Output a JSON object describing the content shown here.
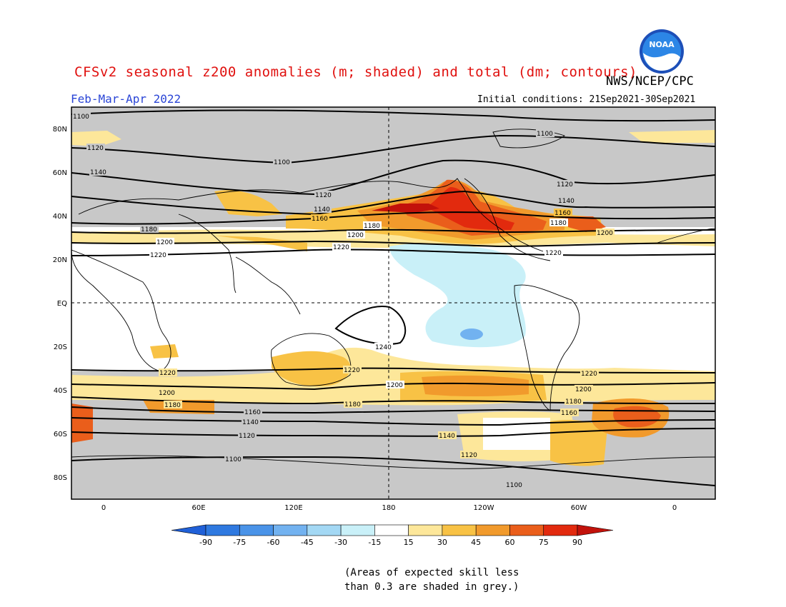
{
  "title": "CFSv2 seasonal z200 anomalies (m; shaded) and total (dm; contours)",
  "agency": "NWS/NCEP/CPC",
  "logo_text": "NOAA",
  "period": "Feb-Mar-Apr 2022",
  "initial_conditions": "Initial conditions: 21Sep2021-30Sep2021",
  "lat_labels": [
    "80N",
    "60N",
    "40N",
    "20N",
    "EQ",
    "20S",
    "40S",
    "60S",
    "80S"
  ],
  "lon_labels": [
    "0",
    "60E",
    "120E",
    "180",
    "120W",
    "60W",
    "0"
  ],
  "contour_labels": [
    "1100",
    "1120",
    "1140",
    "1160",
    "1180",
    "1200",
    "1220",
    "1240"
  ],
  "colorbar": {
    "values": [
      "-90",
      "-75",
      "-60",
      "-45",
      "-30",
      "-15",
      "15",
      "30",
      "45",
      "60",
      "75",
      "90"
    ],
    "colors": [
      "#2060d8",
      "#2f79e0",
      "#4a93e8",
      "#72b2f0",
      "#a3d8f4",
      "#c9f0f8",
      "#ffffff",
      "#fde79a",
      "#f8c245",
      "#f19a2c",
      "#ea5e1b",
      "#e22a0e",
      "#c2120b"
    ]
  },
  "note": [
    "(Areas of expected skill less",
    "than 0.3 are shaded in grey.)"
  ],
  "colors": {
    "grey_mask": "#c8c8c8",
    "title": "#e0100e",
    "period": "#2a45d6"
  }
}
